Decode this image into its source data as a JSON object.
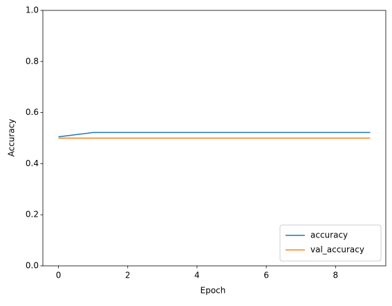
{
  "chart_data": {
    "type": "line",
    "x": [
      0,
      1,
      2,
      3,
      4,
      5,
      6,
      7,
      8,
      9
    ],
    "series": [
      {
        "name": "accuracy",
        "color": "#1f77b4",
        "values": [
          0.505,
          0.522,
          0.522,
          0.522,
          0.522,
          0.522,
          0.522,
          0.522,
          0.522,
          0.522
        ]
      },
      {
        "name": "val_accuracy",
        "color": "#ff7f0e",
        "values": [
          0.5,
          0.5,
          0.5,
          0.5,
          0.5,
          0.5,
          0.5,
          0.5,
          0.5,
          0.5
        ]
      }
    ],
    "x_label": "Epoch",
    "y_label": "Accuracy",
    "xlim": [
      -0.45,
      9.45
    ],
    "xticks": [
      0,
      2,
      4,
      6,
      8
    ],
    "ylim": [
      0,
      1
    ],
    "yticks": [
      {
        "value": 0,
        "label": "0.0"
      },
      {
        "value": 0.2,
        "label": "0.2"
      },
      {
        "value": 0.4,
        "label": "0.4"
      },
      {
        "value": 0.6,
        "label": "0.6"
      },
      {
        "value": 0.8,
        "label": "0.8"
      },
      {
        "value": 1,
        "label": "1.0"
      }
    ],
    "grid": false,
    "legend": "lower right"
  }
}
